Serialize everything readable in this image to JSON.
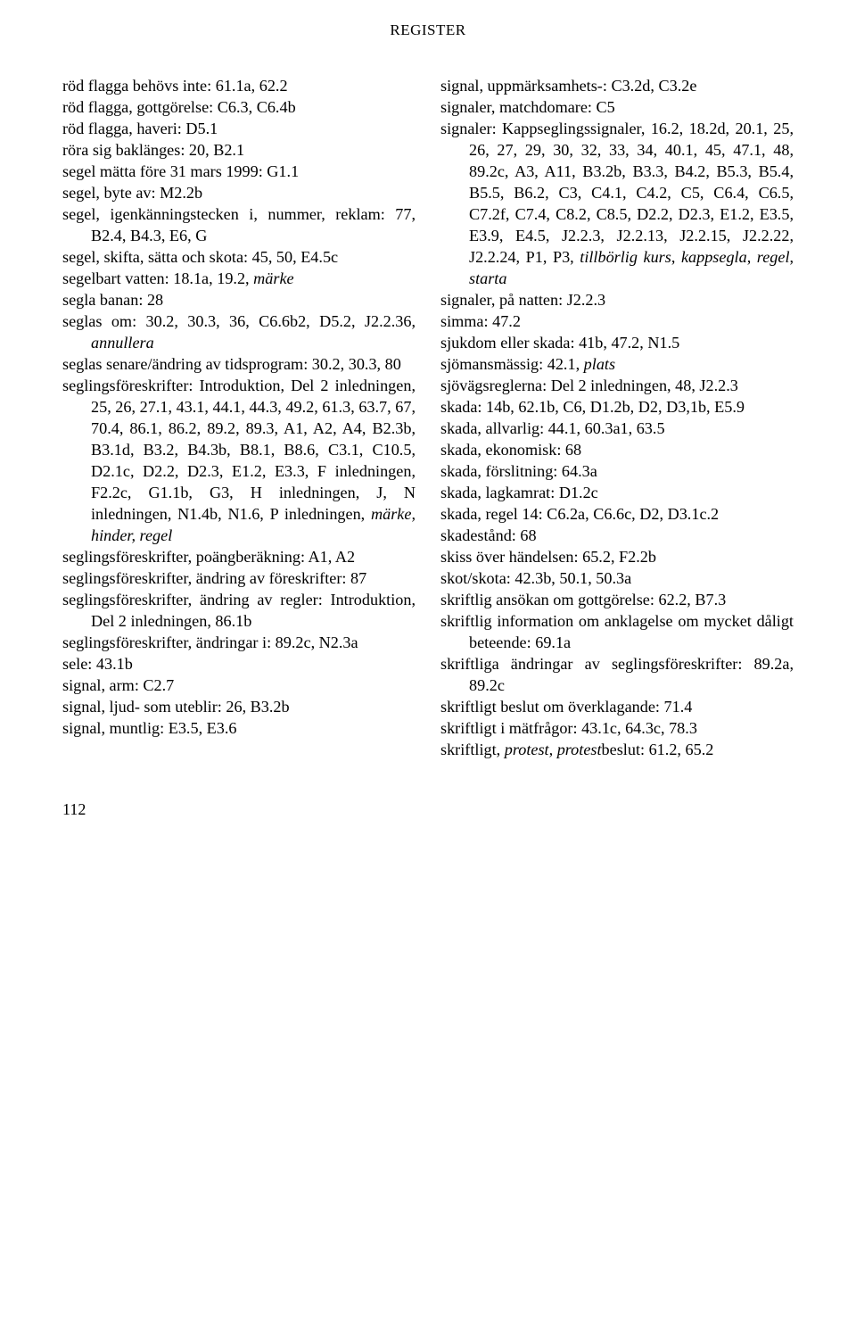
{
  "header": "REGISTER",
  "page_number": "112",
  "left_entries": [
    "röd flagga behövs inte: 61.1a, 62.2",
    "röd flagga, gottgörelse: C6.3, C6.4b",
    "röd flagga, haveri: D5.1",
    "röra sig baklänges: 20, B2.1",
    "segel mätta före 31 mars 1999: G1.1",
    "segel, byte av: M2.2b",
    "segel, igenkänningstecken i, nummer, reklam: 77, B2.4, B4.3, E6, G",
    "segel, skifta, sätta och skota: 45, 50, E4.5c",
    "segelbart vatten: 18.1a, 19.2, <em>märke</em>",
    "segla banan: 28",
    "seglas om: 30.2, 30.3, 36, C6.6b2, D5.2, J2.2.36, <em>annullera</em>",
    "seglas senare/ändring av tidsprogram: 30.2, 30.3, 80",
    "seglingsföreskrifter: Introduktion, Del 2 inledningen, 25, 26, 27.1, 43.1, 44.1, 44.3, 49.2, 61.3, 63.7, 67, 70.4, 86.1, 86.2, 89.2, 89.3, A1, A2, A4, B2.3b, B3.1d, B3.2, B4.3b, B8.1, B8.6, C3.1, C10.5, D2.1c, D2.2, D2.3, E1.2, E3.3, F inledningen, F2.2c, G1.1b, G3, H inledningen, J, N inledningen, N1.4b, N1.6, P inledningen, <em>märke, hinder, regel</em>",
    "seglingsföreskrifter, poängberäkning: A1, A2",
    "seglingsföreskrifter, ändring av föreskrifter: 87",
    "seglingsföreskrifter, ändring av regler: Introduktion, Del 2 inledningen, 86.1b",
    "seglingsföreskrifter, ändringar i: 89.2c, N2.3a",
    "sele: 43.1b",
    "signal, arm: C2.7",
    "signal, ljud- som uteblir: 26, B3.2b",
    "signal, muntlig: E3.5, E3.6"
  ],
  "right_entries": [
    "signal, uppmärksamhets-: C3.2d, C3.2e",
    "signaler, matchdomare: C5",
    "signaler: Kappseglingssignaler, 16.2, 18.2d, 20.1, 25, 26, 27, 29, 30, 32, 33, 34, 40.1, 45, 47.1, 48, 89.2c, A3, A11, B3.2b, B3.3, B4.2, B5.3, B5.4, B5.5, B6.2, C3, C4.1, C4.2, C5, C6.4, C6.5, C7.2f, C7.4, C8.2, C8.5, D2.2, D2.3, E1.2, E3.5, E3.9, E4.5, J2.2.3, J2.2.13, J2.2.15, J2.2.22, J2.2.24, P1, P3, <em>tillbörlig kurs</em>, <em>kappsegla</em>, <em>regel</em>, <em>starta</em>",
    "signaler, på natten: J2.2.3",
    "simma: 47.2",
    "sjukdom eller skada: 41b, 47.2, N1.5",
    "sjömansmässig: 42.1, <em>plats</em>",
    "sjövägsreglerna: Del 2 inledningen, 48, J2.2.3",
    "skada: 14b, 62.1b, C6, D1.2b, D2, D3,1b, E5.9",
    "skada, allvarlig: 44.1, 60.3a1, 63.5",
    "skada, ekonomisk: 68",
    "skada, förslitning: 64.3a",
    "skada, lagkamrat: D1.2c",
    "skada, regel 14: C6.2a, C6.6c, D2, D3.1c.2",
    "skadestånd: 68",
    "skiss över händelsen: 65.2, F2.2b",
    "skot/skota: 42.3b, 50.1, 50.3a",
    "skriftlig ansökan om gottgörelse: 62.2, B7.3",
    "skriftlig information om anklagelse om mycket dåligt beteende: 69.1a",
    "skriftliga ändringar av seglingsföreskrifter: 89.2a, 89.2c",
    "skriftligt beslut om överklagande: 71.4",
    "skriftligt i mätfrågor: 43.1c, 64.3c, 78.3",
    "skriftligt, <em>protest, protest</em>beslut: 61.2, 65.2"
  ],
  "outdent_left": [
    13
  ],
  "outdent_right": []
}
